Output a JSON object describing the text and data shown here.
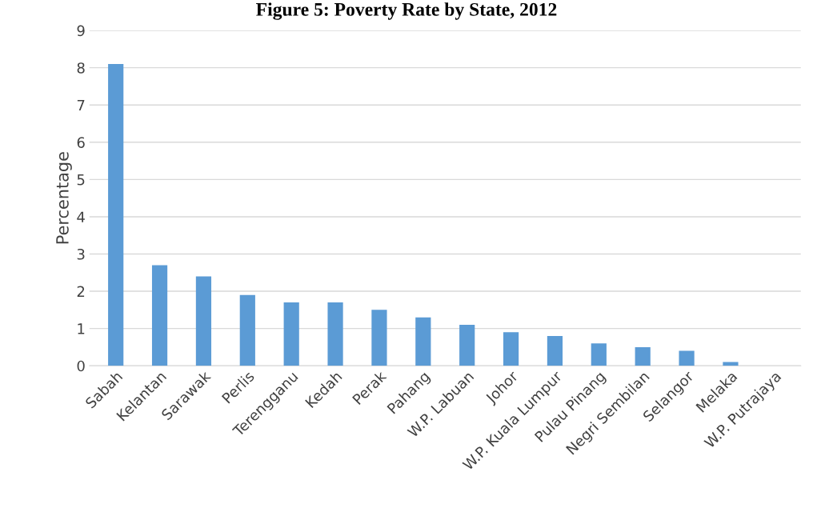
{
  "chart_data": {
    "type": "bar",
    "title": "Figure 5: Poverty Rate by State, 2012",
    "ylabel": "Percentage",
    "categories": [
      "Sabah",
      "Kelantan",
      "Sarawak",
      "Perlis",
      "Terengganu",
      "Kedah",
      "Perak",
      "Pahang",
      "W.P. Labuan",
      "Johor",
      "W.P. Kuala Lumpur",
      "Pulau Pinang",
      "Negri Sembilan",
      "Selangor",
      "Melaka",
      "W.P. Putrajaya"
    ],
    "values": [
      8.1,
      2.7,
      2.4,
      1.9,
      1.7,
      1.7,
      1.5,
      1.3,
      1.1,
      0.9,
      0.8,
      0.6,
      0.5,
      0.4,
      0.1,
      0.0
    ],
    "color": "#5b9bd5",
    "ylim": [
      0,
      9
    ],
    "yticks": [
      0,
      1,
      2,
      3,
      4,
      5,
      6,
      7,
      8,
      9
    ],
    "grid": "y"
  }
}
